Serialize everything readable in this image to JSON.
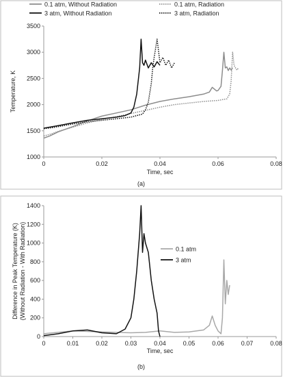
{
  "chart_data": [
    {
      "type": "line",
      "caption": "(a)",
      "xlabel": "Time, sec",
      "ylabel": "Temperature, K",
      "xlim": [
        0,
        0.08
      ],
      "ylim": [
        1000,
        3500
      ],
      "xticks": [
        "0",
        "0.02",
        "0.04",
        "0.06",
        "0.08"
      ],
      "yticks": [
        "1000",
        "1500",
        "2000",
        "2500",
        "3000",
        "3500"
      ],
      "grid": false,
      "legend_position": "top",
      "series": [
        {
          "name": "0.1 atm, Without Radiation",
          "color": "#8c8c8c",
          "dash": "solid",
          "x": [
            0,
            0.002,
            0.005,
            0.01,
            0.015,
            0.02,
            0.025,
            0.03,
            0.035,
            0.04,
            0.045,
            0.05,
            0.055,
            0.057,
            0.058,
            0.0595,
            0.06,
            0.061,
            0.0615,
            0.062,
            0.0625,
            0.063,
            0.0635,
            0.064,
            0.0645,
            0.065
          ],
          "values": [
            1360,
            1400,
            1480,
            1580,
            1690,
            1780,
            1840,
            1900,
            1990,
            2060,
            2110,
            2150,
            2200,
            2240,
            2330,
            2260,
            2270,
            2350,
            2650,
            3000,
            2700,
            2720,
            2650,
            2700,
            2660,
            2700
          ]
        },
        {
          "name": "0.1 atm, Radiation",
          "color": "#8c8c8c",
          "dash": "dotted",
          "x": [
            0,
            0.002,
            0.005,
            0.01,
            0.015,
            0.02,
            0.025,
            0.03,
            0.035,
            0.04,
            0.045,
            0.05,
            0.055,
            0.06,
            0.063,
            0.064,
            0.0645,
            0.065,
            0.0655,
            0.066,
            0.0665,
            0.067
          ],
          "values": [
            1400,
            1430,
            1490,
            1570,
            1650,
            1720,
            1770,
            1830,
            1890,
            1950,
            2000,
            2030,
            2060,
            2080,
            2110,
            2200,
            2450,
            3000,
            2750,
            2700,
            2660,
            2700
          ]
        },
        {
          "name": "3 atm, Without Radiation",
          "color": "#111111",
          "dash": "solid",
          "x": [
            0,
            0.003,
            0.005,
            0.01,
            0.015,
            0.02,
            0.025,
            0.028,
            0.03,
            0.031,
            0.032,
            0.033,
            0.0335,
            0.034,
            0.0345,
            0.035,
            0.036,
            0.037,
            0.038,
            0.039,
            0.04
          ],
          "values": [
            1550,
            1580,
            1600,
            1650,
            1700,
            1730,
            1760,
            1790,
            1840,
            1950,
            2200,
            2700,
            3250,
            2800,
            2750,
            2850,
            2700,
            2800,
            2720,
            2820,
            2750
          ]
        },
        {
          "name": "3 atm, Radiation",
          "color": "#111111",
          "dash": "dotted",
          "x": [
            0,
            0.003,
            0.005,
            0.01,
            0.015,
            0.02,
            0.025,
            0.03,
            0.034,
            0.035,
            0.036,
            0.037,
            0.0375,
            0.038,
            0.039,
            0.04,
            0.041,
            0.042,
            0.043,
            0.044,
            0.045
          ],
          "values": [
            1540,
            1560,
            1580,
            1630,
            1670,
            1700,
            1730,
            1760,
            1820,
            1900,
            2050,
            2400,
            2700,
            2900,
            3250,
            2800,
            2900,
            2750,
            2850,
            2700,
            2800
          ]
        }
      ]
    },
    {
      "type": "line",
      "caption": "(b)",
      "xlabel": "Time, sec",
      "ylabel": "Difference in Peak Temperature (K)",
      "ylabel2": "(Without Radiation - With Radiation)",
      "xlim": [
        0,
        0.08
      ],
      "ylim": [
        0,
        1400
      ],
      "xticks": [
        "0",
        "0.01",
        "0.02",
        "0.03",
        "0.04",
        "0.05",
        "0.06",
        "0.07",
        "0.08"
      ],
      "yticks": [
        "0",
        "200",
        "400",
        "600",
        "800",
        "1000",
        "1200",
        "1400"
      ],
      "grid": false,
      "legend_position": "right",
      "series": [
        {
          "name": "0.1 atm",
          "color": "#a8a8a8",
          "dash": "solid",
          "x": [
            0,
            0.01,
            0.02,
            0.03,
            0.035,
            0.04,
            0.045,
            0.05,
            0.055,
            0.057,
            0.058,
            0.059,
            0.06,
            0.061,
            0.0615,
            0.062,
            0.0625,
            0.063,
            0.0635,
            0.064
          ],
          "values": [
            30,
            60,
            50,
            40,
            45,
            60,
            45,
            50,
            70,
            120,
            220,
            120,
            60,
            30,
            200,
            820,
            350,
            600,
            450,
            550
          ]
        },
        {
          "name": "3 atm",
          "color": "#111111",
          "dash": "solid",
          "x": [
            0,
            0.005,
            0.01,
            0.015,
            0.02,
            0.025,
            0.028,
            0.03,
            0.031,
            0.032,
            0.033,
            0.0335,
            0.034,
            0.0345,
            0.035,
            0.036,
            0.037,
            0.038,
            0.039,
            0.0395,
            0.04
          ],
          "values": [
            10,
            30,
            60,
            70,
            40,
            30,
            80,
            200,
            400,
            700,
            1100,
            1400,
            900,
            1100,
            1000,
            900,
            600,
            400,
            250,
            60,
            0
          ]
        }
      ]
    }
  ]
}
